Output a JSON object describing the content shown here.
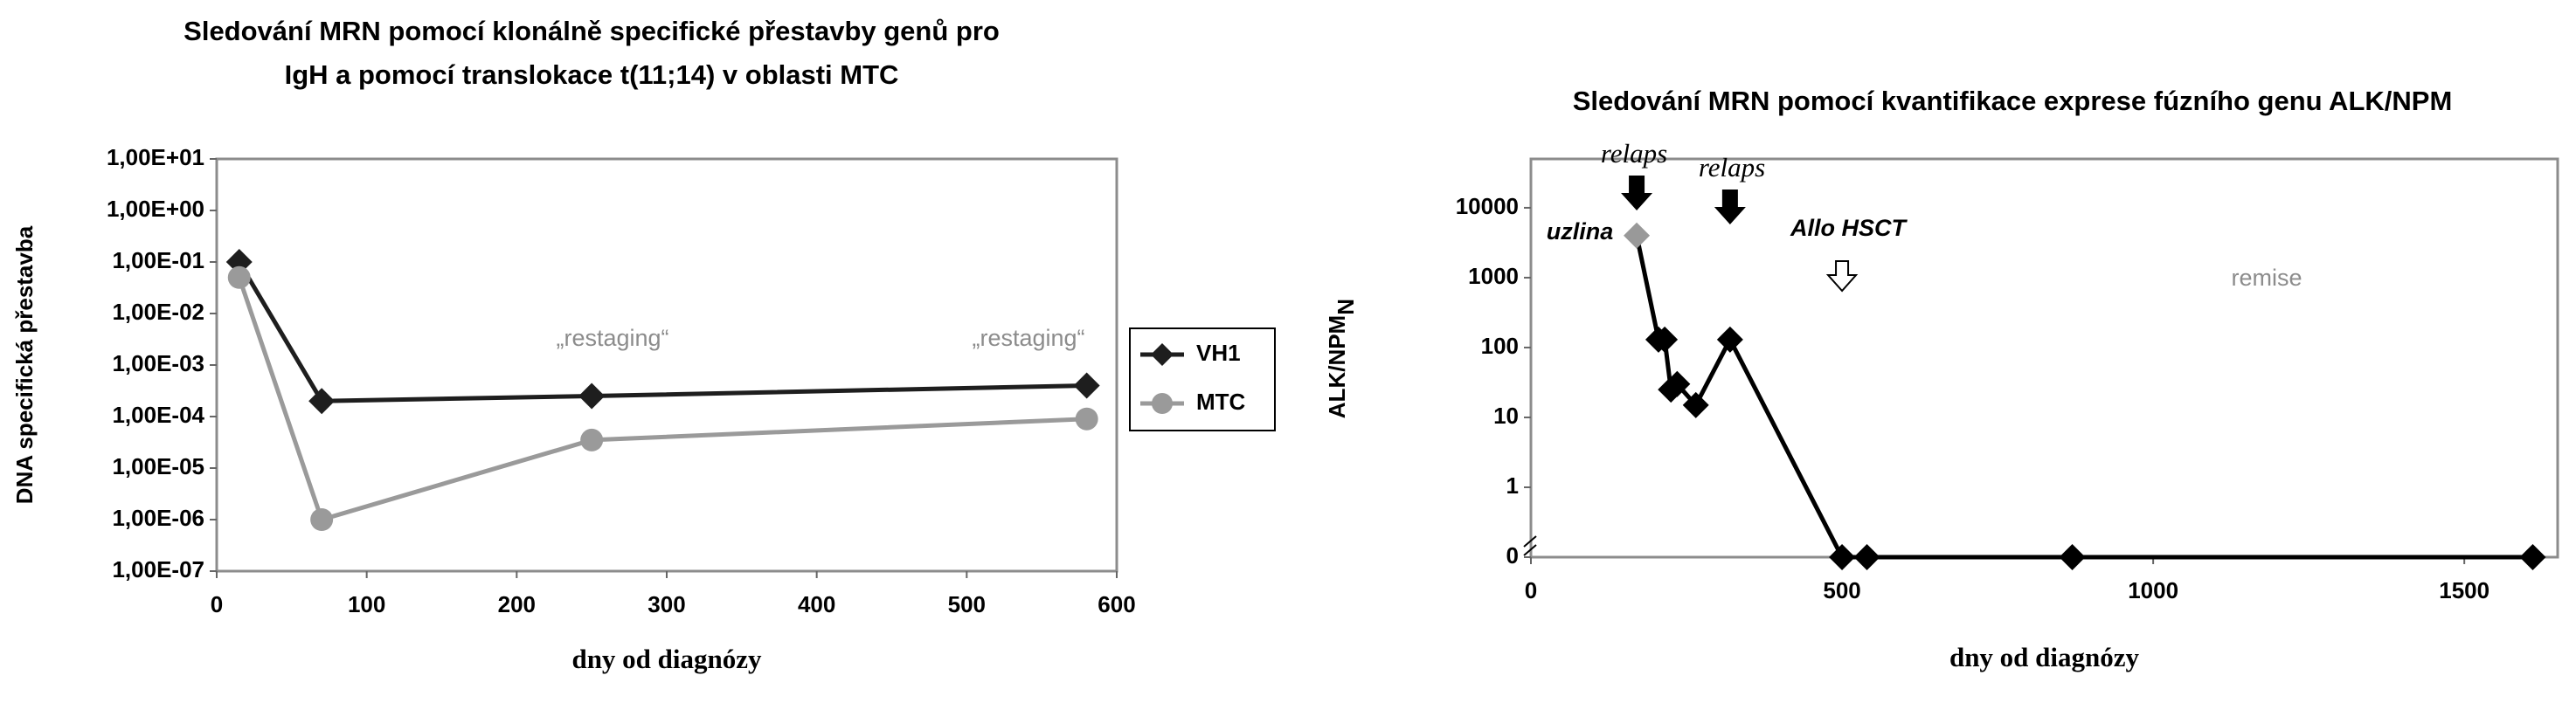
{
  "chart_data": [
    {
      "type": "line",
      "title": [
        "Sledování MRN pomocí klonálně specifické přestavby genů pro",
        "IgH a pomocí translokace t(11;14) v oblasti MTC"
      ],
      "xlabel": "dny od diagnózy",
      "ylabel": "DNA  specifická přestavba",
      "log_y": true,
      "xlim": [
        0,
        600
      ],
      "xticks": [
        0,
        100,
        200,
        300,
        400,
        500,
        600
      ],
      "ylim": [
        1e-07,
        10
      ],
      "yticks": [
        {
          "value": 1e-07,
          "label": "1,00E-07"
        },
        {
          "value": 1e-06,
          "label": "1,00E-06"
        },
        {
          "value": 1e-05,
          "label": "1,00E-05"
        },
        {
          "value": 0.0001,
          "label": "1,00E-04"
        },
        {
          "value": 0.001,
          "label": "1,00E-03"
        },
        {
          "value": 0.01,
          "label": "1,00E-02"
        },
        {
          "value": 0.1,
          "label": "1,00E-01"
        },
        {
          "value": 1,
          "label": "1,00E+00"
        },
        {
          "value": 10,
          "label": "1,00E+01"
        }
      ],
      "grid": false,
      "legend": "right",
      "annotations": [
        "„restaging“",
        "„restaging“"
      ],
      "series": [
        {
          "name": "VH1",
          "color": "#1e1e1e",
          "marker": "diamond",
          "x": [
            15,
            70,
            250,
            580
          ],
          "values": [
            0.1,
            0.0002,
            0.00025,
            0.0004
          ]
        },
        {
          "name": "MTC",
          "color": "#9a9a9a",
          "marker": "circle",
          "x": [
            15,
            70,
            250,
            580
          ],
          "values": [
            0.05,
            1e-06,
            3.5e-05,
            9e-05
          ]
        }
      ]
    },
    {
      "type": "line",
      "title": [
        "Sledování MRN pomocí kvantifikace exprese fúzního genu ALK/NPM"
      ],
      "xlabel": "dny od diagnózy",
      "ylabel": "ALK/NPM",
      "ylabel_sub": "N",
      "log_y": true,
      "axis_break": true,
      "xlim": [
        0,
        1650
      ],
      "xticks": [
        0,
        500,
        1000,
        1500
      ],
      "ylim": [
        0.1,
        50000
      ],
      "yticks": [
        0,
        1,
        10,
        100,
        1000,
        10000
      ],
      "grid": false,
      "annotations": [
        "relaps",
        "relaps",
        "uzlina",
        "Allo HSCT",
        "remise"
      ],
      "series": [
        {
          "color": "#000000",
          "marker": "diamond",
          "marker_colors": [
            "#999999",
            "#000000",
            "#000000",
            "#000000",
            "#000000",
            "#000000",
            "#000000",
            "#000000",
            "#000000",
            "#000000",
            "#000000"
          ],
          "x": [
            170,
            205,
            215,
            225,
            235,
            265,
            320,
            500,
            540,
            870,
            1610
          ],
          "values": [
            4000,
            130,
            130,
            25,
            30,
            15,
            130,
            0,
            0,
            0,
            0
          ]
        }
      ]
    }
  ]
}
